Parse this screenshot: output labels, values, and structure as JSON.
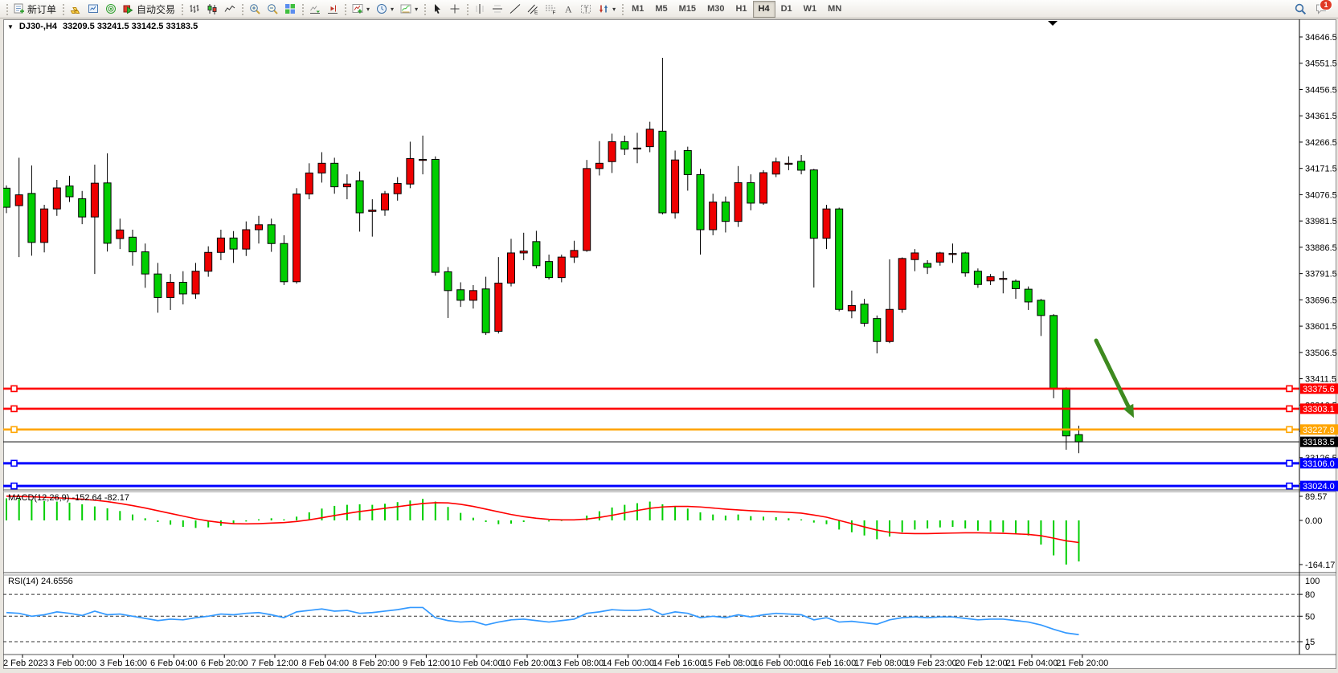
{
  "toolbar": {
    "new_order_label": "新订单",
    "autotrade_label": "自动交易",
    "timeframes": [
      "M1",
      "M5",
      "M15",
      "M30",
      "H1",
      "H4",
      "D1",
      "W1",
      "MN"
    ],
    "active_timeframe": "H4",
    "notification_badge": "1"
  },
  "chart": {
    "menu_arrow": "▼",
    "symbol_period": "DJ30-,H4",
    "ohlc_text": "33209.5 33241.5 33142.5 33183.5"
  },
  "macd": {
    "label": "MACD(12,26,9) -152.64 -82.17"
  },
  "rsi": {
    "label": "RSI(14) 24.6556"
  },
  "chart_data": {
    "type": "candlestick",
    "symbol": "DJ30-,H4",
    "current_bar": {
      "open": 33209.5,
      "high": 33241.5,
      "low": 33142.5,
      "close": 33183.5
    },
    "price_ticks": [
      34646.5,
      34551.5,
      34456.5,
      34361.5,
      34266.5,
      34171.5,
      34076.5,
      33981.5,
      33886.5,
      33791.5,
      33696.5,
      33601.5,
      33506.5,
      33411.5,
      33316.5,
      33221.5,
      33126.5,
      33031.5
    ],
    "hlines": [
      {
        "label": "33375.6",
        "price": 33375.6,
        "color": "#FF0000",
        "width": 2.6,
        "markers": true
      },
      {
        "label": "33303.1",
        "price": 33303.1,
        "color": "#FF0000",
        "width": 2.6,
        "markers": true
      },
      {
        "label": "33227.9",
        "price": 33227.9,
        "color": "#FFA500",
        "width": 2.6,
        "markers": true
      },
      {
        "label": "33183.5",
        "price": 33183.5,
        "color": "#000000",
        "width": 1,
        "markers": false
      },
      {
        "label": "33106.0",
        "price": 33106.0,
        "color": "#0000FF",
        "width": 3,
        "markers": true
      },
      {
        "label": "33024.0",
        "price": 33024.0,
        "color": "#0000FF",
        "width": 3,
        "markers": true
      }
    ],
    "candles": [
      [
        34100,
        34110,
        34010,
        34031
      ],
      [
        34037,
        34210,
        33851,
        34076
      ],
      [
        34081,
        34182,
        33856,
        33904
      ],
      [
        33904,
        34040,
        33868,
        34025
      ],
      [
        34025,
        34130,
        34000,
        34101
      ],
      [
        34108,
        34145,
        34050,
        34069
      ],
      [
        34062,
        34090,
        33970,
        33996
      ],
      [
        33996,
        34185,
        33790,
        34118
      ],
      [
        34119,
        34226,
        33871,
        33901
      ],
      [
        33918,
        33990,
        33880,
        33949
      ],
      [
        33923,
        33950,
        33820,
        33870
      ],
      [
        33870,
        33900,
        33740,
        33790
      ],
      [
        33790,
        33830,
        33650,
        33705
      ],
      [
        33705,
        33790,
        33660,
        33760
      ],
      [
        33760,
        33800,
        33680,
        33718
      ],
      [
        33718,
        33830,
        33700,
        33800
      ],
      [
        33800,
        33890,
        33780,
        33868
      ],
      [
        33868,
        33950,
        33840,
        33920
      ],
      [
        33920,
        33945,
        33830,
        33880
      ],
      [
        33880,
        33980,
        33855,
        33950
      ],
      [
        33950,
        34000,
        33900,
        33968
      ],
      [
        33968,
        33990,
        33870,
        33900
      ],
      [
        33900,
        33930,
        33750,
        33762
      ],
      [
        33762,
        34100,
        33755,
        34079
      ],
      [
        34079,
        34190,
        34060,
        34155
      ],
      [
        34155,
        34230,
        34120,
        34190
      ],
      [
        34190,
        34210,
        34080,
        34105
      ],
      [
        34105,
        34150,
        34060,
        34115
      ],
      [
        34127,
        34160,
        33943,
        34011
      ],
      [
        34016,
        34060,
        33925,
        34021
      ],
      [
        34021,
        34090,
        34000,
        34080
      ],
      [
        34080,
        34140,
        34055,
        34117
      ],
      [
        34115,
        34268,
        34100,
        34207
      ],
      [
        34204,
        34290,
        34150,
        34204
      ],
      [
        34204,
        34215,
        33784,
        33796
      ],
      [
        33798,
        33815,
        33631,
        33730
      ],
      [
        33733,
        33760,
        33671,
        33695
      ],
      [
        33695,
        33750,
        33665,
        33730
      ],
      [
        33736,
        33780,
        33570,
        33578
      ],
      [
        33583,
        33851,
        33575,
        33757
      ],
      [
        33757,
        33917,
        33745,
        33866
      ],
      [
        33866,
        33939,
        33840,
        33873
      ],
      [
        33907,
        33946,
        33810,
        33820
      ],
      [
        33835,
        33860,
        33770,
        33777
      ],
      [
        33777,
        33860,
        33760,
        33851
      ],
      [
        33851,
        33910,
        33830,
        33875
      ],
      [
        33875,
        34202,
        33870,
        34171
      ],
      [
        34171,
        34270,
        34146,
        34190
      ],
      [
        34196,
        34297,
        34155,
        34268
      ],
      [
        34268,
        34290,
        34220,
        34241
      ],
      [
        34245,
        34300,
        34190,
        34245
      ],
      [
        34250,
        34340,
        34230,
        34313
      ],
      [
        34306,
        34571,
        34005,
        34011
      ],
      [
        34011,
        34236,
        33990,
        34202
      ],
      [
        34236,
        34250,
        34091,
        34149
      ],
      [
        34149,
        34170,
        33860,
        33950
      ],
      [
        33950,
        34080,
        33930,
        34050
      ],
      [
        34050,
        34070,
        33940,
        33980
      ],
      [
        33980,
        34180,
        33960,
        34120
      ],
      [
        34120,
        34150,
        34020,
        34046
      ],
      [
        34046,
        34165,
        34040,
        34156
      ],
      [
        34151,
        34210,
        34140,
        34195
      ],
      [
        34190,
        34215,
        34165,
        34190
      ],
      [
        34197,
        34220,
        34150,
        34165
      ],
      [
        34166,
        34170,
        33741,
        33919
      ],
      [
        33919,
        34040,
        33880,
        34025
      ],
      [
        34025,
        34030,
        33655,
        33662
      ],
      [
        33657,
        33730,
        33630,
        33676
      ],
      [
        33681,
        33700,
        33600,
        33612
      ],
      [
        33629,
        33640,
        33503,
        33546
      ],
      [
        33546,
        33843,
        33540,
        33662
      ],
      [
        33662,
        33850,
        33650,
        33846
      ],
      [
        33842,
        33880,
        33800,
        33866
      ],
      [
        33828,
        33840,
        33790,
        33814
      ],
      [
        33833,
        33870,
        33820,
        33866
      ],
      [
        33864,
        33900,
        33830,
        33864
      ],
      [
        33866,
        33870,
        33780,
        33794
      ],
      [
        33800,
        33810,
        33740,
        33752
      ],
      [
        33765,
        33790,
        33750,
        33780
      ],
      [
        33774,
        33800,
        33720,
        33774
      ],
      [
        33764,
        33770,
        33700,
        33737
      ],
      [
        33735,
        33745,
        33660,
        33689
      ],
      [
        33695,
        33700,
        33566,
        33640
      ],
      [
        33640,
        33645,
        33341,
        33374
      ],
      [
        33374,
        33380,
        33155,
        33205
      ],
      [
        33209.5,
        33241.5,
        33142.5,
        33183.5
      ]
    ],
    "macd_hist": [
      82,
      80,
      76,
      72,
      70,
      66,
      60,
      52,
      45,
      35,
      22,
      8,
      -6,
      -16,
      -24,
      -28,
      -26,
      -20,
      -12,
      -4,
      4,
      8,
      4,
      14,
      30,
      44,
      54,
      58,
      60,
      58,
      62,
      68,
      74,
      80,
      70,
      50,
      28,
      10,
      -6,
      -14,
      -12,
      -6,
      0,
      -4,
      -2,
      4,
      18,
      34,
      48,
      58,
      64,
      70,
      60,
      52,
      44,
      30,
      22,
      18,
      22,
      16,
      14,
      12,
      8,
      4,
      -8,
      -14,
      -34,
      -44,
      -56,
      -70,
      -60,
      -44,
      -34,
      -30,
      -26,
      -24,
      -30,
      -38,
      -42,
      -44,
      -50,
      -56,
      -90,
      -130,
      -164.17,
      -152.64
    ],
    "macd_signal": [
      90,
      89,
      88,
      86,
      84,
      82,
      79,
      75,
      70,
      63,
      55,
      46,
      36,
      26,
      16,
      6,
      -2,
      -8,
      -12,
      -13,
      -12,
      -10,
      -8,
      -4,
      2,
      10,
      18,
      26,
      33,
      39,
      45,
      51,
      57,
      63,
      66,
      65,
      60,
      52,
      42,
      32,
      22,
      14,
      8,
      4,
      2,
      2,
      5,
      11,
      19,
      28,
      37,
      45,
      50,
      52,
      52,
      50,
      46,
      42,
      39,
      36,
      34,
      32,
      30,
      27,
      20,
      12,
      0,
      -12,
      -24,
      -36,
      -44,
      -48,
      -49,
      -49,
      -48,
      -47,
      -46,
      -46,
      -47,
      -48,
      -50,
      -52,
      -57,
      -66,
      -76,
      -82.17
    ],
    "macd_axis": [
      89.57,
      0,
      -164.17
    ],
    "macd_axis_labels": [
      "89.57",
      "0.00",
      "-164.17"
    ],
    "rsi_values": [
      55,
      54,
      50,
      52,
      56,
      54,
      51,
      57,
      52,
      53,
      50,
      47,
      44,
      46,
      45,
      48,
      50,
      53,
      52,
      54,
      55,
      52,
      48,
      56,
      58,
      60,
      57,
      58,
      54,
      55,
      57,
      59,
      62,
      62,
      48,
      44,
      42,
      43,
      38,
      42,
      45,
      46,
      44,
      42,
      44,
      46,
      54,
      56,
      59,
      58,
      58,
      60,
      52,
      56,
      54,
      48,
      50,
      48,
      52,
      49,
      52,
      54,
      53,
      52,
      45,
      48,
      42,
      43,
      41,
      39,
      45,
      48,
      49,
      48,
      49,
      49,
      47,
      45,
      46,
      46,
      44,
      42,
      38,
      32,
      27,
      24.66
    ],
    "rsi_levels": [
      80,
      50,
      15
    ],
    "rsi_axis_labels": [
      "100",
      "80",
      "50",
      "15",
      "0"
    ],
    "time_labels": [
      "2 Feb 2023",
      "3 Feb 00:00",
      "3 Feb 16:00",
      "6 Feb 04:00",
      "6 Feb 20:00",
      "7 Feb 12:00",
      "8 Feb 04:00",
      "8 Feb 20:00",
      "9 Feb 12:00",
      "10 Feb 04:00",
      "10 Feb 20:00",
      "13 Feb 08:00",
      "14 Feb 00:00",
      "14 Feb 16:00",
      "15 Feb 08:00",
      "16 Feb 00:00",
      "16 Feb 16:00",
      "17 Feb 08:00",
      "19 Feb 23:00",
      "20 Feb 12:00",
      "21 Feb 04:00",
      "21 Feb 20:00"
    ],
    "annotation_arrow": {
      "from": [
        1364,
        424
      ],
      "to": [
        1404,
        506
      ]
    },
    "colors": {
      "bull": "#EE0000",
      "bear": "#00CE00",
      "wick": "#000000",
      "macd_hist": "#00CE00",
      "macd_signal": "#FF0000",
      "rsi_line": "#3399FF",
      "arrow": "#3E8A1F",
      "background": "#FFFFFF"
    }
  }
}
